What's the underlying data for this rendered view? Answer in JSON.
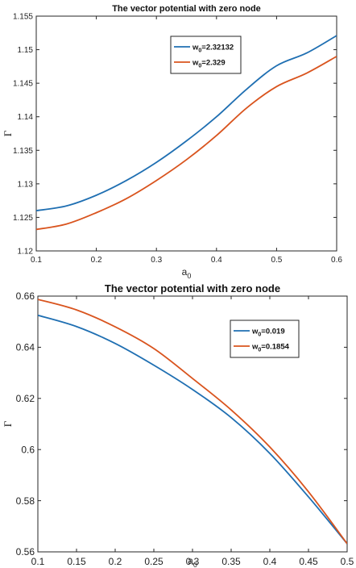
{
  "colors": {
    "blue": "#1f6fb2",
    "orange": "#d9541e",
    "axis": "#262626",
    "grid": "none"
  },
  "chart_data": [
    {
      "type": "line",
      "title": "The vector potential with zero node",
      "xlabel": "a",
      "xlabel_sub": "0",
      "ylabel": "Γ",
      "xlim": [
        0.1,
        0.6
      ],
      "ylim": [
        1.12,
        1.155
      ],
      "xticks": [
        0.1,
        0.2,
        0.3,
        0.4,
        0.5,
        0.6
      ],
      "xtick_labels": [
        "0.1",
        "0.2",
        "0.3",
        "0.4",
        "0.5",
        "0.6"
      ],
      "yticks": [
        1.12,
        1.125,
        1.13,
        1.135,
        1.14,
        1.145,
        1.15,
        1.155
      ],
      "ytick_labels": [
        "1.12",
        "1.125",
        "1.13",
        "1.135",
        "1.14",
        "1.145",
        "1.15",
        "1.155"
      ],
      "grid": false,
      "legend_position": "top-right",
      "x": [
        0.1,
        0.15,
        0.2,
        0.25,
        0.3,
        0.35,
        0.4,
        0.45,
        0.5,
        0.55,
        0.6
      ],
      "series": [
        {
          "name_prefix": "w",
          "name_sub": "0",
          "name_suffix": "=2.32132",
          "color": "#1f6fb2",
          "values": [
            1.126,
            1.1267,
            1.1283,
            1.1305,
            1.1332,
            1.1364,
            1.14,
            1.1441,
            1.1476,
            1.1495,
            1.1521
          ]
        },
        {
          "name_prefix": "w",
          "name_sub": "0",
          "name_suffix": "=2.329",
          "color": "#d9541e",
          "values": [
            1.1232,
            1.124,
            1.1257,
            1.1278,
            1.1305,
            1.1336,
            1.1372,
            1.1413,
            1.1445,
            1.1465,
            1.149
          ]
        }
      ]
    },
    {
      "type": "line",
      "title": "The vector potential with zero node",
      "xlabel": "a",
      "xlabel_sub": "0",
      "ylabel": "Γ",
      "xlim": [
        0.1,
        0.5
      ],
      "ylim": [
        0.56,
        0.66
      ],
      "xticks": [
        0.1,
        0.15,
        0.2,
        0.25,
        0.3,
        0.35,
        0.4,
        0.45,
        0.5
      ],
      "xtick_labels": [
        "0.1",
        "0.15",
        "0.2",
        "0.25",
        "0.3",
        "0.35",
        "0.4",
        "0.45",
        "0.5"
      ],
      "yticks": [
        0.56,
        0.58,
        0.6,
        0.62,
        0.64,
        0.66
      ],
      "ytick_labels": [
        "0.56",
        "0.58",
        "0.6",
        "0.62",
        "0.64",
        "0.66"
      ],
      "grid": false,
      "legend_position": "top-right",
      "x": [
        0.1,
        0.15,
        0.2,
        0.25,
        0.3,
        0.35,
        0.4,
        0.45,
        0.5
      ],
      "series": [
        {
          "name_prefix": "w",
          "name_sub": "0",
          "name_suffix": "=0.019",
          "color": "#1f6fb2",
          "values": [
            0.6525,
            0.6481,
            0.6415,
            0.633,
            0.6235,
            0.6125,
            0.5985,
            0.5815,
            0.5632
          ]
        },
        {
          "name_prefix": "w",
          "name_sub": "0",
          "name_suffix": "=0.1854",
          "color": "#d9541e",
          "values": [
            0.6587,
            0.6546,
            0.648,
            0.6395,
            0.6278,
            0.6155,
            0.601,
            0.5835,
            0.5632
          ]
        }
      ]
    }
  ]
}
